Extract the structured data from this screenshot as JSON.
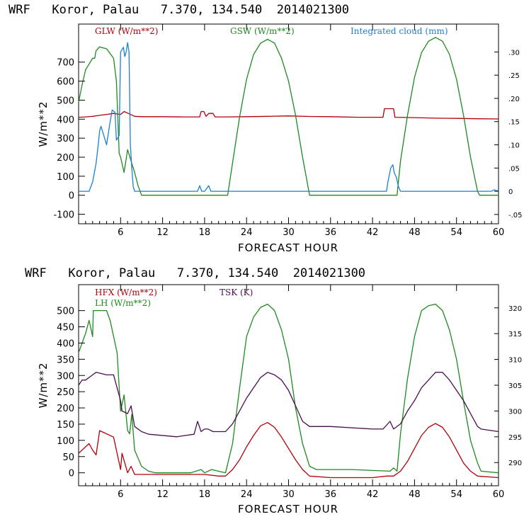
{
  "chart_data": [
    {
      "type": "line",
      "title": "WRF   Koror, Palau   7.370, 134.540  2014021300",
      "xlabel": "FORECAST HOUR",
      "ylabel": "W/m**2",
      "xlim": [
        0,
        60
      ],
      "ylim": [
        -150,
        900
      ],
      "y2lim": [
        -0.07,
        0.36
      ],
      "x_ticks": [
        "6",
        "12",
        "18",
        "24",
        "30",
        "36",
        "42",
        "48",
        "54",
        "60"
      ],
      "y_ticks": [
        "-100",
        "0",
        "100",
        "200",
        "300",
        "400",
        "500",
        "600",
        "700"
      ],
      "y2_ticks": [
        "-.05",
        "0",
        ".05",
        ".10",
        ".15",
        ".20",
        ".25",
        ".30"
      ],
      "series": [
        {
          "name": "GLW (W/m**2)",
          "axis": "left",
          "color": "#b0000a",
          "x": [
            0,
            1,
            2,
            3,
            4,
            5,
            6,
            6.5,
            7,
            8,
            9,
            12,
            15,
            17.3,
            17.5,
            17.9,
            18.2,
            18.6,
            19.2,
            19.5,
            21,
            24,
            27,
            30,
            33,
            36,
            40,
            43.5,
            43.7,
            45,
            45.2,
            48,
            51,
            54,
            57,
            60
          ],
          "y": [
            410,
            412,
            415,
            420,
            425,
            430,
            425,
            440,
            432,
            415,
            413,
            413,
            412,
            412,
            440,
            440,
            415,
            430,
            430,
            412,
            412,
            413,
            415,
            417,
            414,
            413,
            410,
            410,
            455,
            455,
            410,
            408,
            405,
            404,
            402,
            401
          ]
        },
        {
          "name": "GSW (W/m**2)",
          "axis": "left",
          "color": "#1f8a1f",
          "x": [
            0,
            0.5,
            1,
            1.5,
            2,
            2.3,
            2.5,
            3,
            4,
            5,
            5.4,
            5.8,
            6,
            6.5,
            7,
            7.5,
            8,
            8.5,
            9,
            21.3,
            22,
            23,
            24,
            25,
            26,
            27,
            28,
            29,
            30,
            31,
            32,
            33,
            45.5,
            46,
            47,
            48,
            49,
            50,
            51,
            52,
            53,
            54,
            55,
            56,
            57,
            57.3,
            60
          ],
          "y": [
            490,
            580,
            660,
            690,
            720,
            720,
            760,
            780,
            770,
            720,
            600,
            220,
            200,
            120,
            240,
            180,
            120,
            50,
            0,
            0,
            170,
            410,
            610,
            740,
            800,
            820,
            800,
            720,
            600,
            420,
            200,
            0,
            0,
            180,
            420,
            620,
            750,
            810,
            830,
            810,
            740,
            610,
            420,
            200,
            20,
            0,
            0
          ]
        },
        {
          "name": "Integrated cloud (mm)",
          "axis": "right",
          "color": "#1e7fd0",
          "x": [
            0,
            1.5,
            2,
            2.5,
            2.8,
            3,
            3.2,
            3.6,
            4,
            4.4,
            4.8,
            5.2,
            5.4,
            5.8,
            6,
            6.4,
            6.6,
            6.8,
            7,
            7.2,
            7.4,
            7.6,
            7.8,
            8,
            17,
            17.3,
            17.6,
            18,
            18.6,
            18.9,
            19.2,
            44,
            44.2,
            44.6,
            44.9,
            45.1,
            45.4,
            45.7,
            46,
            59,
            59.4,
            60
          ],
          "y": [
            0,
            0,
            0.02,
            0.06,
            0.1,
            0.13,
            0.14,
            0.12,
            0.1,
            0.14,
            0.175,
            0.17,
            0.11,
            0.12,
            0.3,
            0.31,
            0.29,
            0.3,
            0.32,
            0.3,
            0.1,
            0.05,
            0.01,
            0,
            0,
            0.012,
            0,
            0,
            0.012,
            0,
            0,
            0,
            0.02,
            0.05,
            0.057,
            0.04,
            0.03,
            0.01,
            0,
            0,
            0.003,
            0
          ]
        }
      ]
    },
    {
      "type": "line",
      "title": "WRF   Koror, Palau   7.370, 134.540  2014021300",
      "xlabel": "FORECAST HOUR",
      "ylabel": "W/m**2",
      "xlim": [
        0,
        60
      ],
      "ylim": [
        -40,
        580
      ],
      "y2lim": [
        285.5,
        324.5
      ],
      "x_ticks": [
        "6",
        "12",
        "18",
        "24",
        "30",
        "36",
        "42",
        "48",
        "54",
        "60"
      ],
      "y_ticks": [
        "0",
        "50",
        "100",
        "150",
        "200",
        "250",
        "300",
        "350",
        "400",
        "450",
        "500"
      ],
      "y2_ticks": [
        "290",
        "295",
        "300",
        "305",
        "310",
        "315",
        "320"
      ],
      "series": [
        {
          "name": "HFX (W/m**2)",
          "axis": "left",
          "color": "#b0000a",
          "x": [
            0,
            1,
            1.5,
            2,
            2.5,
            3,
            3.5,
            5,
            6,
            6.2,
            7,
            7.5,
            8,
            10,
            15,
            18,
            20,
            21,
            22,
            23,
            24,
            25,
            26,
            27,
            28,
            29,
            30,
            31,
            32,
            33,
            36,
            42,
            44,
            45,
            46,
            47,
            48,
            49,
            50,
            51,
            52,
            53,
            54,
            55,
            56,
            57,
            60
          ],
          "y": [
            60,
            80,
            90,
            70,
            55,
            130,
            125,
            110,
            10,
            60,
            0,
            20,
            -5,
            -5,
            -5,
            -5,
            -10,
            -10,
            10,
            40,
            80,
            115,
            145,
            155,
            140,
            110,
            75,
            40,
            10,
            -10,
            -15,
            -15,
            -10,
            -10,
            5,
            35,
            75,
            115,
            140,
            152,
            140,
            110,
            70,
            30,
            5,
            -10,
            -15
          ]
        },
        {
          "name": "LH (W/m**2)",
          "axis": "left",
          "color": "#1f8a1f",
          "x": [
            0,
            1,
            1.5,
            2,
            2.1,
            4,
            4.5,
            5.5,
            6,
            6.5,
            7,
            7.3,
            7.6,
            8,
            9,
            10,
            11,
            16,
            17.5,
            18,
            19,
            21,
            22,
            23,
            24,
            25,
            26,
            27,
            28,
            29,
            30,
            31,
            32,
            33,
            34,
            39,
            44.5,
            45,
            45.5,
            46,
            47,
            48,
            49,
            50,
            51,
            52,
            53,
            54,
            55,
            56,
            57,
            57.5,
            60
          ],
          "y": [
            370,
            430,
            470,
            420,
            500,
            500,
            470,
            370,
            190,
            240,
            130,
            120,
            180,
            70,
            20,
            5,
            0,
            0,
            10,
            0,
            10,
            0,
            90,
            260,
            420,
            480,
            510,
            520,
            500,
            440,
            350,
            200,
            90,
            20,
            10,
            10,
            5,
            15,
            5,
            120,
            290,
            420,
            500,
            515,
            520,
            500,
            440,
            350,
            220,
            100,
            30,
            5,
            0
          ]
        },
        {
          "name": "TSK (K)",
          "axis": "right",
          "color": "#4a0e4e",
          "x": [
            0,
            0.5,
            1,
            2,
            2.5,
            4,
            5,
            6,
            6.2,
            7,
            7.5,
            8,
            9,
            10,
            14,
            16.5,
            17,
            17.5,
            18,
            18.5,
            19.2,
            21,
            22,
            23,
            24,
            25,
            26,
            27,
            28,
            29,
            30,
            31,
            32,
            33,
            36,
            42,
            43.5,
            44.5,
            45,
            46,
            47,
            48,
            49,
            50,
            51,
            52,
            53,
            54,
            55,
            56,
            57,
            57.5,
            60
          ],
          "y": [
            305,
            306,
            306,
            307,
            307.5,
            307,
            307,
            302,
            300,
            299.5,
            301,
            297,
            296,
            295.5,
            295,
            295.5,
            298,
            296,
            296.5,
            296.5,
            296,
            296,
            297.5,
            300,
            302.5,
            304.5,
            306.5,
            307.5,
            307,
            306,
            304,
            301,
            298,
            297,
            297,
            296.5,
            296.5,
            298,
            296.5,
            297.5,
            300,
            302,
            304.5,
            306,
            307.5,
            307.5,
            306,
            304,
            302,
            299.5,
            297,
            296.5,
            296
          ]
        }
      ]
    }
  ]
}
